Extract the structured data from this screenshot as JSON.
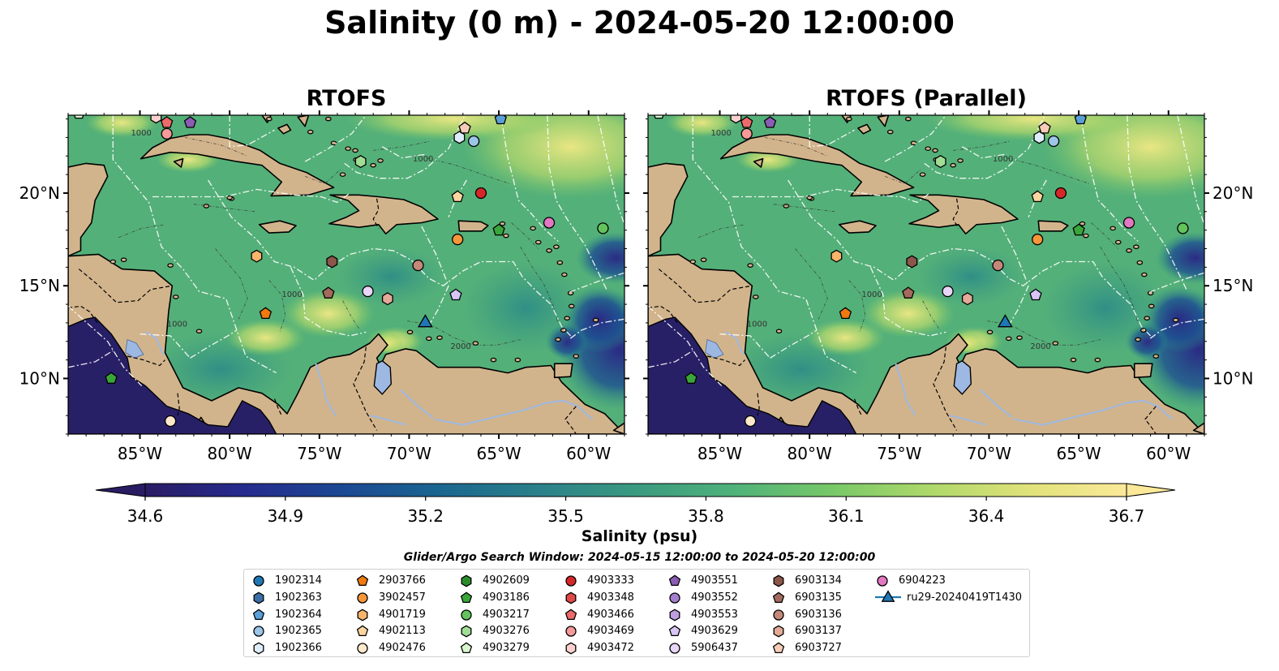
{
  "title": "Salinity (0 m) - 2024-05-20 12:00:00",
  "panels": [
    {
      "title": "RTOFS"
    },
    {
      "title": "RTOFS (Parallel)"
    }
  ],
  "axes": {
    "lon_ticks": [
      "85°W",
      "80°W",
      "75°W",
      "70°W",
      "65°W",
      "60°W"
    ],
    "lat_ticks": [
      "10°N",
      "15°N",
      "20°N"
    ],
    "lon_range": [
      -89,
      -58
    ],
    "lat_range": [
      7,
      24.2
    ]
  },
  "contour_labels": [
    "1000",
    "1000",
    "2000",
    "1000",
    "1000"
  ],
  "colorbar": {
    "label": "Salinity (psu)",
    "ticks": [
      "34.6",
      "34.9",
      "35.2",
      "35.5",
      "35.8",
      "36.1",
      "36.4",
      "36.7"
    ],
    "range": [
      34.6,
      36.7
    ],
    "colormap": [
      "#2a1c63",
      "#262b8d",
      "#1c4893",
      "#1a6690",
      "#2b808a",
      "#3a9a80",
      "#4fb27a",
      "#78c868",
      "#aed86a",
      "#e0e27a",
      "#fbe999"
    ]
  },
  "colors": {
    "land": "#d2b48c",
    "lakes": "#9db9e3",
    "coast": "#000000",
    "eez": "#ffffff"
  },
  "search_window": "Glider/Argo Search Window: 2024-05-15 12:00:00 to 2024-05-20 12:00:00",
  "legend": [
    {
      "id": "1902314",
      "color": "#1f77b4",
      "shape": "circle"
    },
    {
      "id": "1902363",
      "color": "#3a6fa8",
      "shape": "hexagon"
    },
    {
      "id": "1902364",
      "color": "#5a9fd8",
      "shape": "pentagon"
    },
    {
      "id": "1902365",
      "color": "#9cc5e8",
      "shape": "circle"
    },
    {
      "id": "1902366",
      "color": "#ddeefa",
      "shape": "hexagon"
    },
    {
      "id": "2903766",
      "color": "#f07a10",
      "shape": "pentagon"
    },
    {
      "id": "3902457",
      "color": "#f5963a",
      "shape": "circle"
    },
    {
      "id": "4901719",
      "color": "#f8b46b",
      "shape": "hexagon"
    },
    {
      "id": "4902113",
      "color": "#fcd6a0",
      "shape": "pentagon"
    },
    {
      "id": "4902476",
      "color": "#fde9cc",
      "shape": "circle"
    },
    {
      "id": "4902609",
      "color": "#2c8c2c",
      "shape": "hexagon"
    },
    {
      "id": "4903186",
      "color": "#3aa63a",
      "shape": "pentagon"
    },
    {
      "id": "4903217",
      "color": "#64c35c",
      "shape": "circle"
    },
    {
      "id": "4903276",
      "color": "#a0de96",
      "shape": "hexagon"
    },
    {
      "id": "4903279",
      "color": "#d8f5cf",
      "shape": "pentagon"
    },
    {
      "id": "4903333",
      "color": "#d62728",
      "shape": "circle"
    },
    {
      "id": "4903348",
      "color": "#e04848",
      "shape": "hexagon"
    },
    {
      "id": "4903466",
      "color": "#ec6a6a",
      "shape": "pentagon"
    },
    {
      "id": "4903469",
      "color": "#f59999",
      "shape": "circle"
    },
    {
      "id": "4903472",
      "color": "#fbd0cf",
      "shape": "hexagon"
    },
    {
      "id": "4903551",
      "color": "#8a5cb3",
      "shape": "pentagon"
    },
    {
      "id": "4903552",
      "color": "#a47fcf",
      "shape": "circle"
    },
    {
      "id": "4903553",
      "color": "#bd9fe0",
      "shape": "hexagon"
    },
    {
      "id": "4903629",
      "color": "#d8c4f5",
      "shape": "pentagon"
    },
    {
      "id": "5906437",
      "color": "#e8d5f7",
      "shape": "circle"
    },
    {
      "id": "6903134",
      "color": "#8c564b",
      "shape": "hexagon"
    },
    {
      "id": "6903135",
      "color": "#a46a5e",
      "shape": "pentagon"
    },
    {
      "id": "6903136",
      "color": "#c48878",
      "shape": "circle"
    },
    {
      "id": "6903137",
      "color": "#e3aa97",
      "shape": "hexagon"
    },
    {
      "id": "6903727",
      "color": "#f6cdb8",
      "shape": "pentagon"
    },
    {
      "id": "6904223",
      "color": "#e377c2",
      "shape": "circle"
    },
    {
      "id": "ru29-20240419T1430",
      "color": "#1f77b4",
      "shape": "triangle",
      "line": true
    }
  ],
  "observations": [
    {
      "id": "1902314",
      "lon": -84.2,
      "lat": 24.4
    },
    {
      "id": "1902364",
      "lon": -64.9,
      "lat": 24.0
    },
    {
      "id": "1902365",
      "lon": -66.4,
      "lat": 22.8
    },
    {
      "id": "1902366",
      "lon": -67.2,
      "lat": 23.0
    },
    {
      "id": "2903766",
      "lon": -78.0,
      "lat": 13.5
    },
    {
      "id": "3902457",
      "lon": -67.3,
      "lat": 17.5
    },
    {
      "id": "4901719",
      "lon": -78.5,
      "lat": 16.6
    },
    {
      "id": "4902113",
      "lon": -67.3,
      "lat": 19.8
    },
    {
      "id": "4902476",
      "lon": -83.3,
      "lat": 7.7
    },
    {
      "id": "4903186",
      "lon": -86.6,
      "lat": 10.0
    },
    {
      "id": "4903186",
      "lon": -65.0,
      "lat": 18.0
    },
    {
      "id": "4903217",
      "lon": -59.2,
      "lat": 18.1
    },
    {
      "id": "4903276",
      "lon": -72.7,
      "lat": 21.7
    },
    {
      "id": "4903279",
      "lon": -88.4,
      "lat": 24.3
    },
    {
      "id": "4903333",
      "lon": -66.0,
      "lat": 20.0
    },
    {
      "id": "4903466",
      "lon": -83.5,
      "lat": 23.8
    },
    {
      "id": "4903469",
      "lon": -83.5,
      "lat": 23.2
    },
    {
      "id": "4903472",
      "lon": -84.1,
      "lat": 24.1
    },
    {
      "id": "4903551",
      "lon": -82.2,
      "lat": 23.8
    },
    {
      "id": "4903629",
      "lon": -67.4,
      "lat": 14.5
    },
    {
      "id": "5906437",
      "lon": -72.3,
      "lat": 14.7
    },
    {
      "id": "6903134",
      "lon": -74.3,
      "lat": 16.3
    },
    {
      "id": "6903135",
      "lon": -74.5,
      "lat": 14.6
    },
    {
      "id": "6903136",
      "lon": -69.5,
      "lat": 16.1
    },
    {
      "id": "6903137",
      "lon": -71.2,
      "lat": 14.3
    },
    {
      "id": "6903727",
      "lon": -66.9,
      "lat": 23.5
    },
    {
      "id": "6904223",
      "lon": -62.2,
      "lat": 18.4
    },
    {
      "id": "ru29-20240419T1430",
      "lon": -69.1,
      "lat": 13.0
    }
  ]
}
